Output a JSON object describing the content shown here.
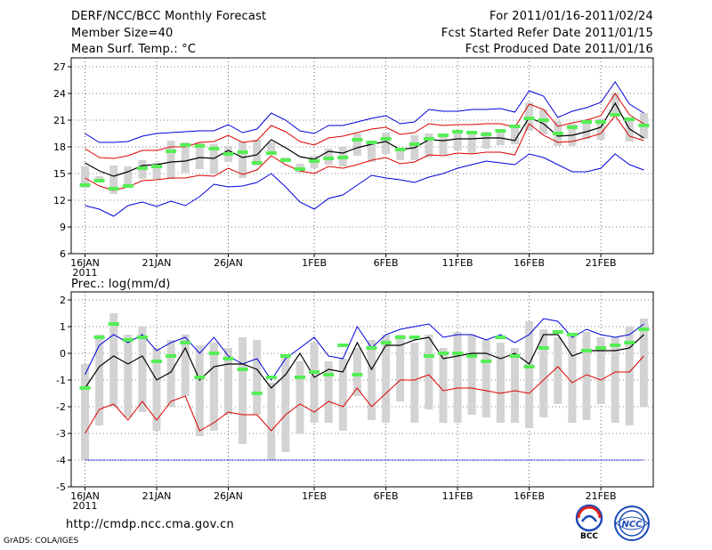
{
  "header": {
    "title": "DERF/NCC/BCC Monthly Forecast",
    "member_size": "Member Size=40",
    "variable": "Mean Surf. Temp.: °C",
    "forecast_period": "For 2011/01/16-2011/02/24",
    "start_date": "Fcst Started Refer Date 2011/01/15",
    "produced_date": "Fcst Produced Date 2011/01/16"
  },
  "footer": {
    "url": "http://cmdp.ncc.cma.gov.cn",
    "credit": "GrADS: COLA/IGES",
    "logo_bcc": "BCC",
    "logo_ncc": "NCC"
  },
  "colors": {
    "box": "#d3d3d3",
    "median_bar": "#55ee55",
    "ensemble_mean": "#000000",
    "upper_bound": "#0000dd",
    "lower_bound": "#0000dd",
    "std_band": "#dd0000"
  },
  "chart_data": [
    {
      "id": "temperature",
      "type": "line",
      "title": "Mean Surf. Temp.: °C",
      "x_tick_labels": [
        "16JAN",
        "21JAN",
        "26JAN",
        "1FEB",
        "6FEB",
        "11FEB",
        "16FEB",
        "21FEB"
      ],
      "x_tick_day_index": [
        0,
        5,
        10,
        16,
        21,
        26,
        31,
        36
      ],
      "year_label": "2011",
      "ylim": [
        6,
        28
      ],
      "yticks": [
        6,
        9,
        12,
        15,
        18,
        21,
        24,
        27
      ],
      "days": 40,
      "series": [
        {
          "name": "max",
          "values": [
            19.5,
            18.5,
            18.5,
            18.6,
            19.2,
            19.5,
            19.6,
            19.7,
            19.8,
            19.8,
            20.5,
            19.6,
            20,
            21.8,
            21,
            19.8,
            19.5,
            20.4,
            20.4,
            20.8,
            21.2,
            21.5,
            20.6,
            20.8,
            22.2,
            22,
            22,
            22.2,
            22.2,
            22.3,
            21.9,
            24.3,
            23.7,
            21.3,
            22,
            22.4,
            23,
            25.3,
            22.8,
            21.8
          ]
        },
        {
          "name": "upper_sd",
          "values": [
            17.8,
            16.8,
            16.7,
            17,
            17.6,
            17.6,
            18,
            18,
            18.5,
            18.6,
            19.3,
            18.5,
            18.7,
            20.4,
            19.7,
            18.6,
            18.2,
            19,
            19.2,
            19.6,
            20,
            20.2,
            19.4,
            19.6,
            20.6,
            20.4,
            20.5,
            20.5,
            20.6,
            20.6,
            20.2,
            22.8,
            22.2,
            20.3,
            20.7,
            21,
            21.5,
            24,
            21.6,
            20.6
          ]
        },
        {
          "name": "mean",
          "values": [
            16.2,
            15.3,
            14.7,
            15.2,
            15.9,
            16,
            16.3,
            16.4,
            16.8,
            16.7,
            17.6,
            16.8,
            17.1,
            18.8,
            17.9,
            16.9,
            16.6,
            17.5,
            17.3,
            17.9,
            18.3,
            18.6,
            17.7,
            17.9,
            18.8,
            18.7,
            18.9,
            18.9,
            19,
            19,
            18.7,
            21.3,
            20.6,
            19.2,
            19.3,
            19.7,
            20.2,
            22.9,
            20,
            19
          ]
        },
        {
          "name": "lower_sd",
          "values": [
            14.5,
            13.6,
            13.1,
            13.5,
            14.2,
            14.3,
            14.5,
            14.5,
            14.8,
            14.7,
            15.6,
            14.9,
            15.4,
            17,
            16,
            15.3,
            15,
            15.8,
            15.6,
            16,
            16.5,
            16.8,
            16.1,
            16.3,
            17.1,
            17,
            17.3,
            17.2,
            17.4,
            17.4,
            17.1,
            20.6,
            19.3,
            18.5,
            18.6,
            19,
            19.5,
            21.5,
            19.2,
            18.7
          ]
        },
        {
          "name": "min",
          "values": [
            11.4,
            11,
            10.2,
            11.4,
            11.8,
            11.3,
            11.9,
            11.4,
            12.4,
            13.8,
            13.5,
            13.6,
            14,
            15,
            13.5,
            11.8,
            11,
            12.2,
            12.6,
            13.7,
            14.8,
            14.5,
            14.3,
            14,
            14.6,
            15,
            15.6,
            16,
            16.4,
            16.2,
            16,
            17.2,
            16.8,
            16,
            15.2,
            15.2,
            15.6,
            17.2,
            16,
            15.4
          ]
        }
      ],
      "boxes": {
        "q_low": [
          13.4,
          14.3,
          12.7,
          13.8,
          14.4,
          14.4,
          14.4,
          15.1,
          15.5,
          15,
          16.3,
          14.5,
          15.9,
          17.3,
          16.4,
          15.1,
          15.6,
          16,
          15.8,
          17,
          16.3,
          17.2,
          16.5,
          16.5,
          16.8,
          17.1,
          17.6,
          17.2,
          17.8,
          18.2,
          18.3,
          19.8,
          19.4,
          18.1,
          18.1,
          18.9,
          18.8,
          21.8,
          18.6,
          18.9
        ],
        "q_high": [
          15.8,
          14.7,
          15.9,
          15.8,
          16.5,
          16.2,
          18.7,
          18.5,
          18.5,
          18.3,
          18.1,
          18.6,
          18.8,
          18.5,
          16.8,
          16.1,
          17,
          17.8,
          18,
          19.5,
          18.5,
          19.6,
          17.9,
          19.3,
          19.5,
          19.5,
          19.9,
          19.6,
          19.7,
          19.9,
          20.3,
          23,
          22.2,
          20.9,
          20.6,
          21.1,
          21.2,
          24.1,
          20.9,
          21.8
        ],
        "median": [
          13.7,
          14.2,
          13.3,
          13.6,
          15.6,
          15.8,
          17.5,
          18.2,
          18.1,
          17.8,
          17.2,
          17.4,
          16.2,
          17.3,
          16.5,
          15.5,
          16.4,
          16.7,
          16.8,
          18.8,
          18.5,
          18.9,
          17.7,
          18.3,
          18.9,
          19.3,
          19.7,
          19.6,
          19.4,
          19.8,
          20.3,
          21.2,
          21,
          19.5,
          20.2,
          20.8,
          20.8,
          21.6,
          21.1,
          20.4
        ]
      }
    },
    {
      "id": "precipitation",
      "type": "line",
      "title": "Prec.: log(mm/d)",
      "x_tick_labels": [
        "16JAN",
        "21JAN",
        "26JAN",
        "1FEB",
        "6FEB",
        "11FEB",
        "16FEB",
        "21FEB"
      ],
      "x_tick_day_index": [
        0,
        5,
        10,
        16,
        21,
        26,
        31,
        36
      ],
      "year_label": "2011",
      "ylim": [
        -5,
        2.3
      ],
      "yticks": [
        -5,
        -4,
        -3,
        -2,
        -1,
        0,
        1,
        2
      ],
      "days": 40,
      "floor_line": -4,
      "series": [
        {
          "name": "max",
          "values": [
            -0.8,
            0.3,
            0.7,
            0.4,
            0.7,
            0.1,
            0.4,
            0.6,
            0,
            0.6,
            -0.1,
            -0.4,
            -0.2,
            -1,
            -0.2,
            0.2,
            0.6,
            -0.1,
            -0.2,
            1,
            0.2,
            0.7,
            0.9,
            1,
            1.1,
            0.6,
            0.7,
            0.7,
            0.5,
            0.7,
            0.4,
            0.7,
            1.3,
            1.2,
            0.6,
            0.9,
            0.7,
            0.6,
            0.7,
            1.1
          ]
        },
        {
          "name": "mean",
          "values": [
            -1.3,
            -0.5,
            -0.1,
            -0.4,
            -0.1,
            -1,
            -0.7,
            0.2,
            -1,
            -0.5,
            -0.4,
            -0.4,
            -0.6,
            -1.3,
            -0.8,
            0,
            -0.9,
            -0.6,
            -0.7,
            0.4,
            -0.6,
            0.3,
            0.3,
            0.5,
            0.6,
            -0.2,
            -0.1,
            0,
            0,
            -0.2,
            0,
            -0.4,
            0.7,
            0.7,
            -0.1,
            0.1,
            0.1,
            0.1,
            0.2,
            0.7
          ]
        },
        {
          "name": "lower_sd",
          "values": [
            -3,
            -2.1,
            -1.9,
            -2.5,
            -1.8,
            -2.5,
            -1.8,
            -1.6,
            -2.9,
            -2.6,
            -2.2,
            -2.3,
            -2.3,
            -2.9,
            -2.3,
            -1.9,
            -2.2,
            -1.8,
            -2,
            -1.3,
            -2,
            -1.5,
            -1,
            -1,
            -0.8,
            -1.4,
            -1.3,
            -1.3,
            -1.4,
            -1.5,
            -1.4,
            -1.5,
            -1,
            -0.5,
            -1.1,
            -0.8,
            -1,
            -0.7,
            -0.7,
            -0.1
          ]
        }
      ],
      "boxes": {
        "q_low": [
          -4,
          -2.7,
          -2,
          -2.4,
          -2.2,
          -2.9,
          -2,
          -1.6,
          -3.1,
          -2.9,
          -2.3,
          -3.4,
          -2.3,
          -4,
          -3.7,
          -3,
          -2.6,
          -2.6,
          -2.9,
          -1.6,
          -2.5,
          -2.6,
          -1.8,
          -2.6,
          -2.1,
          -2.6,
          -2.6,
          -2.3,
          -2.4,
          -2.6,
          -2.6,
          -2.8,
          -2.4,
          -1.9,
          -2.6,
          -2.5,
          -1.9,
          -2.6,
          -2.7,
          -2
        ],
        "q_high": [
          -0.4,
          0.7,
          1.5,
          0.7,
          1,
          0.2,
          0.5,
          0.7,
          0.3,
          0.4,
          0.2,
          0.6,
          0.5,
          -1.1,
          -0.1,
          -0.3,
          0.4,
          -0.3,
          -0.2,
          0.2,
          0.5,
          0.7,
          0.7,
          0.4,
          0.7,
          0.2,
          0.8,
          0.7,
          0.5,
          0.4,
          0.2,
          1.2,
          0.9,
          0.6,
          0.7,
          0.8,
          0.6,
          0.6,
          1,
          1.3
        ],
        "median": [
          -1.3,
          0.6,
          1.1,
          0.5,
          0.6,
          -0.3,
          -0.1,
          0.4,
          -0.9,
          0,
          -0.2,
          -0.6,
          -1.5,
          -0.9,
          -0.1,
          -0.9,
          -0.7,
          -0.8,
          0.3,
          -0.8,
          0.2,
          0.4,
          0.6,
          0.6,
          -0.1,
          0,
          0,
          -0.1,
          -0.3,
          0.6,
          -0.1,
          -0.5,
          0.2,
          0.8,
          0.7,
          0.1,
          0.2,
          0.3,
          0.4,
          0.9
        ]
      }
    }
  ]
}
